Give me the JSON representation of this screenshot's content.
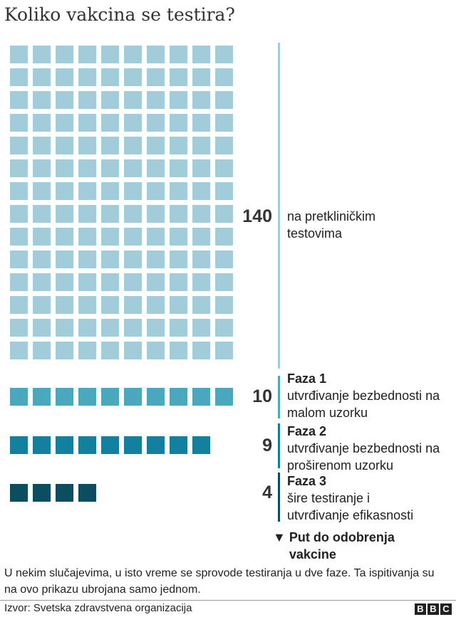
{
  "chart_data": {
    "type": "waffle",
    "title": "Koliko vakcina se testira?",
    "categories": [
      {
        "value": 140,
        "phase": "",
        "label": "na pretkliničkim testovima",
        "color": "#a2ccd9"
      },
      {
        "value": 10,
        "phase": "Faza 1",
        "label": "utvrđivanje bezbednosti na malom uzorku",
        "color": "#4ba7bc"
      },
      {
        "value": 9,
        "phase": "Faza 2",
        "label": "utvrđivanje bezbednosti na proširenom uzorku",
        "color": "#13809f"
      },
      {
        "value": 4,
        "phase": "Faza 3",
        "label": "šire testiranje i utvrđivanje efikasnosti",
        "color": "#0c4d60"
      }
    ],
    "arrow_label": "Put do odobrenja vakcine",
    "arrow_icon": "triangle-down-icon"
  },
  "note": "U nekim slučajevima, u isto vreme se sprovode testiranja u dve faze. Ta ispitivanja su na ovo prikazu ubrojana samo jednom.",
  "source": "Izvor: Svetska zdravstvena organizacija",
  "logo": "BBC"
}
